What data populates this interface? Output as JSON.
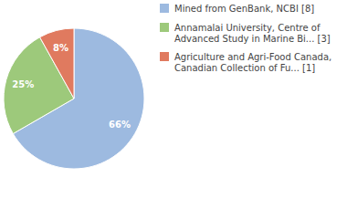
{
  "chart_data": {
    "type": "pie",
    "categories": [
      "Mined from GenBank, NCBI [8]",
      "Annamalai University, Centre of Advanced Study in Marine Bi... [3]",
      "Agriculture and Agri-Food Canada, Canadian Collection of Fu... [1]"
    ],
    "values": [
      66,
      25,
      8
    ],
    "value_labels": [
      "66%",
      "25%",
      "8%"
    ],
    "colors": [
      "#9dbae0",
      "#9dc97b",
      "#e07a5f"
    ],
    "data_labels": true,
    "legend": "top-right"
  }
}
